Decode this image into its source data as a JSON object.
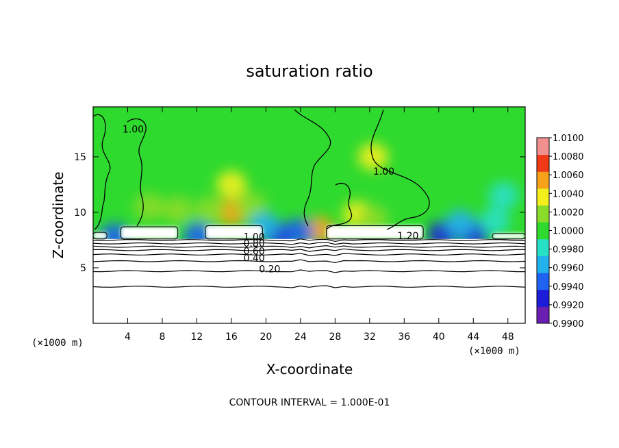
{
  "chart_data": {
    "type": "heatmap",
    "title": "saturation ratio",
    "xlabel": "X-coordinate",
    "ylabel": "Z-coordinate",
    "x_unit": "(×1000 m)",
    "y_unit": "(×1000 m)",
    "xlim": [
      0,
      50
    ],
    "ylim": [
      0,
      19.5
    ],
    "x_ticks": [
      4,
      8,
      12,
      16,
      20,
      24,
      28,
      32,
      36,
      40,
      44,
      48
    ],
    "y_ticks": [
      5,
      10,
      15
    ],
    "colorbar": {
      "min": 0.99,
      "max": 1.01,
      "tick_labels": [
        "0.9900",
        "0.9920",
        "0.9940",
        "0.9960",
        "0.9980",
        "1.0000",
        "1.0020",
        "1.0040",
        "1.0060",
        "1.0080",
        "1.0100"
      ],
      "colors": [
        "#6a1fb0",
        "#1c1cd9",
        "#1f63f0",
        "#22b2ec",
        "#27e0c6",
        "#2fda2f",
        "#8bdc2a",
        "#f3ef1c",
        "#f7a21a",
        "#f03a17",
        "#f29090"
      ]
    },
    "background_value": 1.0,
    "contour_labels": [
      {
        "text": "0.20",
        "x": 19.2,
        "z": 4.6
      },
      {
        "text": "0.40",
        "x": 17.4,
        "z": 5.6
      },
      {
        "text": "0.60",
        "x": 17.4,
        "z": 6.2
      },
      {
        "text": "0.80",
        "x": 17.4,
        "z": 6.9
      },
      {
        "text": "1.00",
        "x": 17.4,
        "z": 7.5
      },
      {
        "text": "1.20",
        "x": 35.2,
        "z": 7.6
      },
      {
        "text": "1.00",
        "x": 3.4,
        "z": 17.2
      },
      {
        "text": "1.00",
        "x": 32.4,
        "z": 13.4
      }
    ],
    "contour_levels_z": [
      3.3,
      4.7,
      5.6,
      6.2,
      6.6,
      6.9,
      7.2,
      7.5
    ],
    "features": [
      {
        "x": 16.0,
        "z": 10.0,
        "value": 1.0065
      },
      {
        "x": 16.0,
        "z": 12.5,
        "value": 1.004
      },
      {
        "x": 13.5,
        "z": 10.2,
        "value": 1.003
      },
      {
        "x": 18.3,
        "z": 10.6,
        "value": 1.003
      },
      {
        "x": 6.5,
        "z": 10.5,
        "value": 1.0025
      },
      {
        "x": 9.8,
        "z": 10.2,
        "value": 1.002
      },
      {
        "x": 26.2,
        "z": 8.4,
        "value": 1.0058
      },
      {
        "x": 30.6,
        "z": 9.8,
        "value": 1.0038
      },
      {
        "x": 32.4,
        "z": 15.0,
        "value": 1.0035
      },
      {
        "x": 32.4,
        "z": 9.4,
        "value": 1.003
      },
      {
        "x": 2.5,
        "z": 7.8,
        "value": 0.9945
      },
      {
        "x": 12.2,
        "z": 7.9,
        "value": 0.9945
      },
      {
        "x": 21.5,
        "z": 7.9,
        "value": 0.9925
      },
      {
        "x": 23.8,
        "z": 8.2,
        "value": 0.9935
      },
      {
        "x": 19.8,
        "z": 8.8,
        "value": 0.9965
      },
      {
        "x": 40.5,
        "z": 8.0,
        "value": 0.9925
      },
      {
        "x": 44.0,
        "z": 8.0,
        "value": 0.9925
      },
      {
        "x": 42.5,
        "z": 9.0,
        "value": 0.9965
      },
      {
        "x": 46.5,
        "z": 9.2,
        "value": 0.997
      },
      {
        "x": 47.5,
        "z": 11.5,
        "value": 0.9982
      },
      {
        "x": 9.0,
        "z": 15.0,
        "value": 1.0006
      },
      {
        "x": 22.0,
        "z": 16.0,
        "value": 1.0006
      }
    ],
    "cloud_layers": [
      {
        "x0": 3.2,
        "x1": 9.8,
        "z0": 7.6,
        "z1": 8.7
      },
      {
        "x0": 13.0,
        "x1": 19.6,
        "z0": 7.6,
        "z1": 8.8
      },
      {
        "x0": 27.0,
        "x1": 38.2,
        "z0": 7.6,
        "z1": 8.8
      },
      {
        "x0": 46.2,
        "x1": 50.0,
        "z0": 7.6,
        "z1": 8.1
      },
      {
        "x0": 0.0,
        "x1": 1.6,
        "z0": 7.6,
        "z1": 8.2
      }
    ],
    "surface_z": 7.6
  },
  "footer": {
    "note": "CONTOUR INTERVAL = 1.000E-01"
  }
}
